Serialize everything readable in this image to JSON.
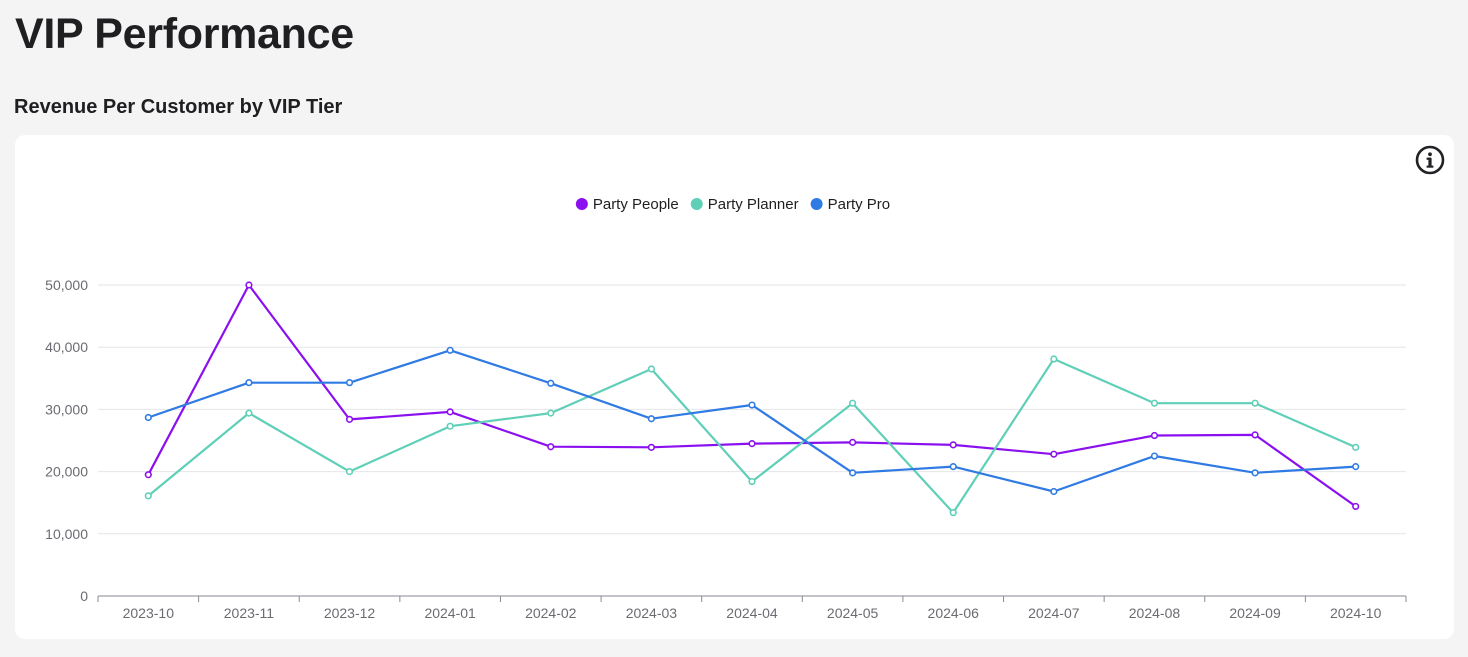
{
  "page": {
    "title": "VIP Performance",
    "section_title": "Revenue Per Customer by VIP Tier"
  },
  "info_icon": "info-icon",
  "colors": {
    "grid": "#e6e6ea",
    "axis": "#8a8a90"
  },
  "chart_data": {
    "type": "line",
    "title": "Revenue Per Customer by VIP Tier",
    "xlabel": "",
    "ylabel": "",
    "categories": [
      "2023-10",
      "2023-11",
      "2023-12",
      "2024-01",
      "2024-02",
      "2024-03",
      "2024-04",
      "2024-05",
      "2024-06",
      "2024-07",
      "2024-08",
      "2024-09",
      "2024-10"
    ],
    "ylim": [
      0,
      50000
    ],
    "yticks": [
      0,
      10000,
      20000,
      30000,
      40000,
      50000
    ],
    "ytick_labels": [
      "0",
      "10,000",
      "20,000",
      "30,000",
      "40,000",
      "50,000"
    ],
    "grid": true,
    "legend_position": "top-center",
    "series": [
      {
        "name": "Party People",
        "color": "#8b10f0",
        "values": [
          19500,
          50000,
          28400,
          29600,
          24000,
          23900,
          24500,
          24700,
          24300,
          22800,
          25800,
          25900,
          14400
        ]
      },
      {
        "name": "Party Planner",
        "color": "#5fcfb8",
        "values": [
          16100,
          29400,
          20000,
          27300,
          29400,
          36500,
          18400,
          31000,
          13400,
          38100,
          31000,
          31000,
          23900
        ]
      },
      {
        "name": "Party Pro",
        "color": "#2f7be3",
        "values": [
          28700,
          34300,
          34300,
          39500,
          34200,
          28500,
          30700,
          19800,
          20800,
          16800,
          22500,
          19800,
          20800
        ]
      }
    ]
  }
}
